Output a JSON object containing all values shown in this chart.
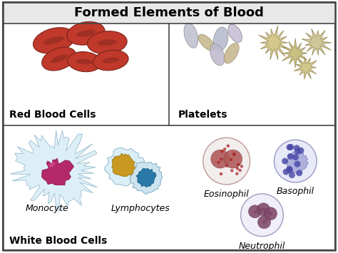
{
  "title": "Formed Elements of Blood",
  "title_fontsize": 13,
  "title_fontweight": "bold",
  "background_color": "#ffffff",
  "border_color": "#444444",
  "top_left_label": "Red Blood Cells",
  "top_right_label": "Platelets",
  "bottom_left_label": "White Blood Cells",
  "bottom_right_labels": [
    "Eosinophil",
    "Basophil",
    "Neutrophil"
  ],
  "monocyte_label": "Monocyte",
  "lymphocyte_label": "Lymphocytes",
  "label_fontsize": 9,
  "section_label_fontsize": 10,
  "section_label_fontweight": "bold",
  "rbc_color": "#c0392b",
  "rbc_edge_color": "#7b241c",
  "monocyte_color": "#c0186a",
  "eosinophil_color": "#c06060",
  "basophil_color": "#6060b8",
  "neutrophil_color": "#906070",
  "title_bg": "#e8e8e8",
  "divider_lw": 1.2
}
